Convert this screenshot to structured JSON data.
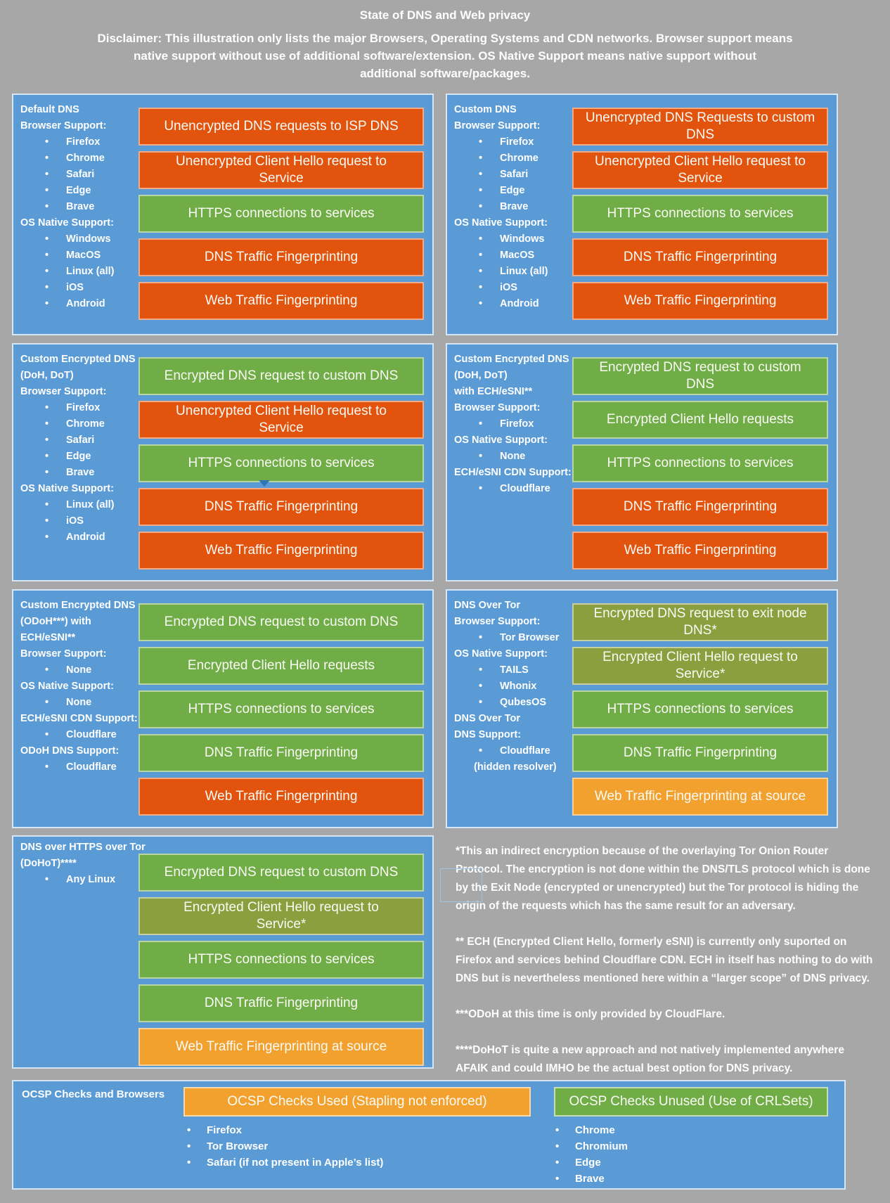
{
  "header": {
    "title": "State of DNS and Web privacy",
    "disclaimer": "Disclaimer: This illustration only lists the major Browsers, Operating Systems and CDN networks. Browser support means\nnative support without use of additional software/extension. OS Native Support means native support without\nadditional software/packages."
  },
  "panels": [
    {
      "id": "default-dns",
      "left": [
        {
          "t": "title",
          "text": "Default DNS"
        },
        {
          "t": "label",
          "text": "Browser Support:"
        },
        {
          "t": "bullet",
          "text": "Firefox"
        },
        {
          "t": "bullet",
          "text": "Chrome"
        },
        {
          "t": "bullet",
          "text": "Safari"
        },
        {
          "t": "bullet",
          "text": "Edge"
        },
        {
          "t": "bullet",
          "text": "Brave"
        },
        {
          "t": "label",
          "text": "OS Native Support:"
        },
        {
          "t": "bullet",
          "text": "Windows"
        },
        {
          "t": "bullet",
          "text": "MacOS"
        },
        {
          "t": "bullet",
          "text": "Linux (all)"
        },
        {
          "t": "bullet",
          "text": "iOS"
        },
        {
          "t": "bullet",
          "text": "Android"
        }
      ],
      "bars": [
        {
          "label": "Unencrypted DNS requests to ISP DNS",
          "color": "red"
        },
        {
          "label": "Unencrypted Client Hello request to\nService",
          "color": "red"
        },
        {
          "label": "HTTPS connections to services",
          "color": "green"
        },
        {
          "label": "DNS Traffic Fingerprinting",
          "color": "red"
        },
        {
          "label": "Web Traffic Fingerprinting",
          "color": "red"
        }
      ]
    },
    {
      "id": "custom-dns",
      "left": [
        {
          "t": "title",
          "text": "Custom DNS"
        },
        {
          "t": "label",
          "text": "Browser Support:"
        },
        {
          "t": "bullet",
          "text": "Firefox"
        },
        {
          "t": "bullet",
          "text": "Chrome"
        },
        {
          "t": "bullet",
          "text": "Safari"
        },
        {
          "t": "bullet",
          "text": "Edge"
        },
        {
          "t": "bullet",
          "text": "Brave"
        },
        {
          "t": "label",
          "text": "OS Native Support:"
        },
        {
          "t": "bullet",
          "text": "Windows"
        },
        {
          "t": "bullet",
          "text": "MacOS"
        },
        {
          "t": "bullet",
          "text": "Linux (all)"
        },
        {
          "t": "bullet",
          "text": "iOS"
        },
        {
          "t": "bullet",
          "text": "Android"
        }
      ],
      "bars": [
        {
          "label": "Unencrypted DNS Requests to custom\nDNS",
          "color": "red"
        },
        {
          "label": "Unencrypted Client Hello request to\nService",
          "color": "red"
        },
        {
          "label": "HTTPS connections to services",
          "color": "green"
        },
        {
          "label": "DNS Traffic Fingerprinting",
          "color": "red"
        },
        {
          "label": "Web Traffic Fingerprinting",
          "color": "red"
        }
      ]
    },
    {
      "id": "custom-encrypted-dns-doh-dot",
      "left": [
        {
          "t": "title",
          "text": "Custom Encrypted DNS"
        },
        {
          "t": "title",
          "text": "(DoH, DoT)"
        },
        {
          "t": "label",
          "text": "Browser Support:"
        },
        {
          "t": "bullet",
          "text": "Firefox"
        },
        {
          "t": "bullet",
          "text": "Chrome"
        },
        {
          "t": "bullet",
          "text": "Safari"
        },
        {
          "t": "bullet",
          "text": "Edge"
        },
        {
          "t": "bullet",
          "text": "Brave"
        },
        {
          "t": "label",
          "text": "OS Native Support:"
        },
        {
          "t": "bullet",
          "text": "Linux (all)"
        },
        {
          "t": "bullet",
          "text": "iOS"
        },
        {
          "t": "bullet",
          "text": "Android"
        }
      ],
      "bars": [
        {
          "label": "Encrypted DNS request to custom DNS",
          "color": "green"
        },
        {
          "label": "Unencrypted Client Hello request to\nService",
          "color": "red"
        },
        {
          "label": "HTTPS connections to services",
          "color": "green"
        },
        {
          "label": "DNS Traffic Fingerprinting",
          "color": "red"
        },
        {
          "label": "Web Traffic Fingerprinting",
          "color": "red"
        }
      ]
    },
    {
      "id": "custom-encrypted-dns-doh-dot-ech-esni",
      "left": [
        {
          "t": "title",
          "text": "Custom Encrypted DNS"
        },
        {
          "t": "title",
          "text": "(DoH, DoT)"
        },
        {
          "t": "title",
          "text": "with ECH/eSNI**"
        },
        {
          "t": "label",
          "text": "Browser Support:"
        },
        {
          "t": "bullet",
          "text": "Firefox"
        },
        {
          "t": "label",
          "text": "OS Native Support:"
        },
        {
          "t": "bullet",
          "text": "None"
        },
        {
          "t": "label",
          "text": "ECH/eSNI CDN Support:"
        },
        {
          "t": "bullet",
          "text": "Cloudflare"
        }
      ],
      "bars": [
        {
          "label": "Encrypted DNS request to custom DNS",
          "color": "green"
        },
        {
          "label": "Encrypted Client Hello requests",
          "color": "green"
        },
        {
          "label": "HTTPS connections to services",
          "color": "green"
        },
        {
          "label": "DNS Traffic Fingerprinting",
          "color": "red"
        },
        {
          "label": "Web Traffic Fingerprinting",
          "color": "red"
        }
      ]
    },
    {
      "id": "custom-encrypted-dns-odoh-ech-esni",
      "left": [
        {
          "t": "title",
          "text": "Custom Encrypted DNS"
        },
        {
          "t": "title",
          "text": "(ODoH***) with"
        },
        {
          "t": "title",
          "text": "ECH/eSNI**"
        },
        {
          "t": "label",
          "text": "Browser Support:"
        },
        {
          "t": "bullet",
          "text": "None"
        },
        {
          "t": "label",
          "text": "OS Native Support:"
        },
        {
          "t": "bullet",
          "text": "None"
        },
        {
          "t": "label",
          "text": "ECH/eSNI CDN Support:"
        },
        {
          "t": "bullet",
          "text": "Cloudflare"
        },
        {
          "t": "label",
          "text": "ODoH DNS Support:"
        },
        {
          "t": "bullet",
          "text": "Cloudflare"
        }
      ],
      "bars": [
        {
          "label": "Encrypted DNS request to custom DNS",
          "color": "green"
        },
        {
          "label": "Encrypted Client Hello requests",
          "color": "green"
        },
        {
          "label": "HTTPS connections to services",
          "color": "green"
        },
        {
          "label": "DNS Traffic Fingerprinting",
          "color": "green"
        },
        {
          "label": "Web Traffic Fingerprinting",
          "color": "red"
        }
      ]
    },
    {
      "id": "dns-over-tor",
      "left": [
        {
          "t": "title",
          "text": "DNS Over Tor"
        },
        {
          "t": "label",
          "text": "Browser Support:"
        },
        {
          "t": "bullet",
          "text": "Tor Browser"
        },
        {
          "t": "label",
          "text": "OS Native Support:"
        },
        {
          "t": "bullet",
          "text": "TAILS"
        },
        {
          "t": "bullet",
          "text": "Whonix"
        },
        {
          "t": "bullet",
          "text": "QubesOS"
        },
        {
          "t": "label",
          "text": "DNS Over Tor"
        },
        {
          "t": "label",
          "text": "DNS Support:"
        },
        {
          "t": "bullet",
          "text": "Cloudflare"
        },
        {
          "t": "plain",
          "text": "(hidden resolver)"
        }
      ],
      "bars": [
        {
          "label": "Encrypted DNS request to exit node\nDNS*",
          "color": "olive"
        },
        {
          "label": "Encrypted Client Hello request to\nService*",
          "color": "olive"
        },
        {
          "label": "HTTPS connections to services",
          "color": "green"
        },
        {
          "label": "DNS Traffic Fingerprinting",
          "color": "green"
        },
        {
          "label": "Web Traffic Fingerprinting at source",
          "color": "amber"
        }
      ]
    },
    {
      "id": "dns-over-https-over-tor",
      "left": [
        {
          "t": "title",
          "text": "DNS over HTTPS over Tor"
        },
        {
          "t": "title",
          "text": "(DoHoT)****"
        },
        {
          "t": "bullet",
          "text": "Any Linux"
        }
      ],
      "bars": [
        {
          "label": "Encrypted DNS request to custom DNS",
          "color": "green"
        },
        {
          "label": "Encrypted Client Hello request to\nService*",
          "color": "olive"
        },
        {
          "label": "HTTPS connections to services",
          "color": "green"
        },
        {
          "label": "DNS Traffic Fingerprinting",
          "color": "green"
        },
        {
          "label": "Web Traffic Fingerprinting at source",
          "color": "amber"
        }
      ]
    }
  ],
  "footnotes": [
    "*This an indirect encryption because of the overlaying Tor Onion Router\nProtocol. The encryption is not done within the DNS/TLS protocol which is done\nby the Exit Node (encrypted or unencrypted) but the Tor protocol is hiding the\norigin of the requests which has the same result for an adversary.",
    "** ECH (Encrypted Client Hello, formerly eSNI) is currently only suported on\nFirefox and services behind Cloudflare CDN. ECH in itself has nothing to do with\nDNS but is nevertheless mentioned here within a “larger scope” of DNS privacy.",
    "***ODoH at this time is only provided by CloudFlare.",
    "****DoHoT is quite a new approach and not natively implemented anywhere\nAFAIK and could IMHO be the actual best option for DNS privacy."
  ],
  "ocsp": {
    "title": "OCSP Checks and Browsers",
    "used": {
      "label": "OCSP Checks Used (Stapling not enforced)",
      "items": [
        "Firefox",
        "Tor Browser",
        "Safari (if not present in Apple’s list)"
      ]
    },
    "unused": {
      "label": "OCSP Checks Unused (Use of CRLSets)",
      "items": [
        "Chrome",
        "Chromium",
        "Edge",
        "Brave"
      ]
    }
  },
  "colors": {
    "background": "#A7A7A7",
    "panel_blue": "#5B9BD5",
    "red": "#E2530D",
    "green": "#70AD47",
    "olive": "#8C9F3F",
    "amber": "#F2A12F"
  }
}
